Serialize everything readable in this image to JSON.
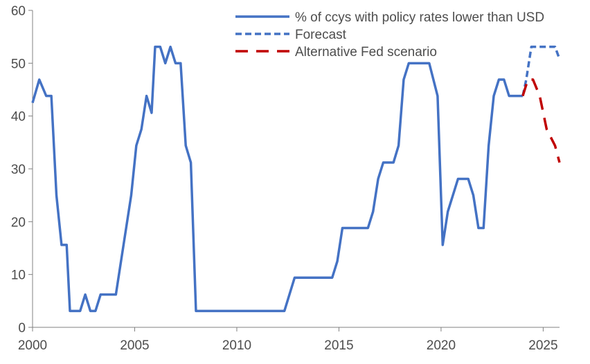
{
  "chart_data": {
    "type": "line",
    "title": "",
    "xlabel": "",
    "ylabel": "",
    "xlim": [
      2000,
      2025.8
    ],
    "ylim": [
      0,
      60
    ],
    "x_ticks": [
      2000,
      2005,
      2010,
      2015,
      2020,
      2025
    ],
    "x_tick_labels": [
      "2000",
      "2005",
      "2010",
      "2015",
      "2020",
      "2025"
    ],
    "y_ticks": [
      0,
      10,
      20,
      30,
      40,
      50,
      60
    ],
    "y_tick_labels": [
      "0",
      "10",
      "20",
      "30",
      "40",
      "50",
      "60"
    ],
    "grid": false,
    "legend_position": "top-right",
    "series": [
      {
        "name": "% of ccys with policy rates lower than USD",
        "color": "#4472C4",
        "style": "solid",
        "points": [
          [
            2000.0,
            42.5
          ],
          [
            2000.33,
            46.9
          ],
          [
            2000.67,
            43.8
          ],
          [
            2000.92,
            43.8
          ],
          [
            2001.17,
            25.0
          ],
          [
            2001.42,
            15.6
          ],
          [
            2001.67,
            15.6
          ],
          [
            2001.83,
            3.1
          ],
          [
            2002.33,
            3.1
          ],
          [
            2002.58,
            6.2
          ],
          [
            2002.83,
            3.1
          ],
          [
            2003.08,
            3.1
          ],
          [
            2003.33,
            6.2
          ],
          [
            2004.08,
            6.2
          ],
          [
            2004.33,
            12.5
          ],
          [
            2004.83,
            25.0
          ],
          [
            2005.08,
            34.4
          ],
          [
            2005.33,
            37.5
          ],
          [
            2005.58,
            43.8
          ],
          [
            2005.83,
            40.6
          ],
          [
            2006.0,
            53.1
          ],
          [
            2006.25,
            53.1
          ],
          [
            2006.5,
            50.0
          ],
          [
            2006.75,
            53.1
          ],
          [
            2007.0,
            50.0
          ],
          [
            2007.25,
            50.0
          ],
          [
            2007.5,
            34.4
          ],
          [
            2007.75,
            31.2
          ],
          [
            2008.0,
            3.1
          ],
          [
            2012.33,
            3.1
          ],
          [
            2012.83,
            9.4
          ],
          [
            2014.67,
            9.4
          ],
          [
            2014.92,
            12.5
          ],
          [
            2015.17,
            18.8
          ],
          [
            2016.42,
            18.8
          ],
          [
            2016.67,
            21.9
          ],
          [
            2016.92,
            28.1
          ],
          [
            2017.17,
            31.2
          ],
          [
            2017.67,
            31.2
          ],
          [
            2017.92,
            34.4
          ],
          [
            2018.17,
            46.9
          ],
          [
            2018.42,
            50.0
          ],
          [
            2019.42,
            50.0
          ],
          [
            2019.83,
            43.8
          ],
          [
            2020.08,
            15.6
          ],
          [
            2020.33,
            21.9
          ],
          [
            2020.83,
            28.1
          ],
          [
            2021.33,
            28.1
          ],
          [
            2021.58,
            25.0
          ],
          [
            2021.83,
            18.8
          ],
          [
            2022.08,
            18.8
          ],
          [
            2022.33,
            34.4
          ],
          [
            2022.58,
            43.8
          ],
          [
            2022.83,
            46.9
          ],
          [
            2023.08,
            46.9
          ],
          [
            2023.33,
            43.8
          ],
          [
            2024.0,
            43.8
          ]
        ]
      },
      {
        "name": "Forecast",
        "color": "#4472C4",
        "style": "dotted",
        "points": [
          [
            2024.0,
            43.8
          ],
          [
            2024.17,
            46.9
          ],
          [
            2024.42,
            53.1
          ],
          [
            2025.58,
            53.1
          ],
          [
            2025.8,
            50.8
          ]
        ]
      },
      {
        "name": "Alternative Fed scenario",
        "color": "#C00000",
        "style": "dashed",
        "points": [
          [
            2024.0,
            43.8
          ],
          [
            2024.25,
            46.9
          ],
          [
            2024.5,
            46.9
          ],
          [
            2024.83,
            43.8
          ],
          [
            2025.17,
            37.5
          ],
          [
            2025.58,
            34.4
          ],
          [
            2025.8,
            31.2
          ]
        ]
      }
    ]
  }
}
